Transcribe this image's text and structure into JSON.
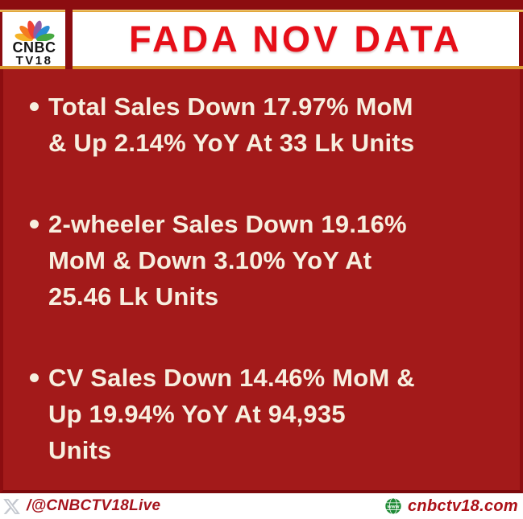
{
  "header": {
    "title": "FADA NOV DATA",
    "logo": {
      "line1": "CNBC",
      "line2": "TV18",
      "peacock_feather_colors": [
        "#F5B328",
        "#F47B20",
        "#EF4135",
        "#8F5BA5",
        "#2A8CD4",
        "#47A942"
      ]
    }
  },
  "body": {
    "bullets": [
      {
        "lines": [
          "Total Sales Down 17.97% MoM",
          "& Up 2.14% YoY At 33 Lk Units"
        ]
      },
      {
        "lines": [
          "2-wheeler Sales Down 19.16%",
          "MoM & Down 3.10% YoY At",
          "25.46 Lk Units"
        ]
      },
      {
        "lines": [
          "CV Sales Down 14.46% MoM &",
          "Up 19.94% YoY At 94,935",
          "Units"
        ]
      }
    ]
  },
  "footer": {
    "x_handle": "/@CNBCTV18Live",
    "website": "cnbctv18.com",
    "globe_label": "www"
  },
  "colors": {
    "frame_red": "#8C0D10",
    "body_red": "#A31A1A",
    "title_red": "#E60E18",
    "gold_trim": "#E2A83E",
    "bullet_ivory": "#F7EFDF",
    "footer_text_red": "#A5141D",
    "globe_green": "#1E8A35",
    "x_logo_gray": "#C4C8CF"
  }
}
